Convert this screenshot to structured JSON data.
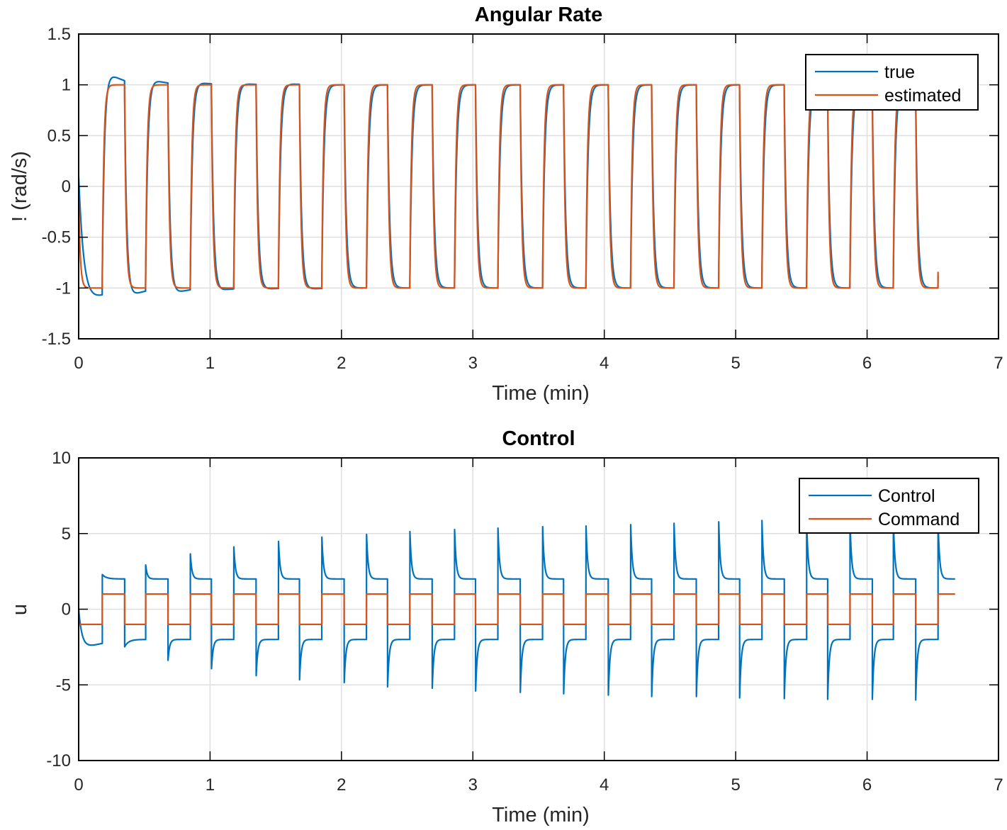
{
  "colors": {
    "blue": "#0072BD",
    "orange": "#D95319",
    "grid": "#DFDFDF",
    "axis": "#262626"
  },
  "chart_data": [
    {
      "type": "line",
      "title": "Angular Rate",
      "xlabel": "Time (min)",
      "ylabel": "!  (rad/s)",
      "xlim": [
        0,
        7
      ],
      "ylim": [
        -1.5,
        1.5
      ],
      "xticks": [
        0,
        1,
        2,
        3,
        4,
        5,
        6,
        7
      ],
      "xtick_labels": [
        "0",
        "1",
        "2",
        "3",
        "4",
        "5",
        "6",
        "7"
      ],
      "yticks": [
        -1.5,
        -1,
        -0.5,
        0,
        0.5,
        1,
        1.5
      ],
      "ytick_labels": [
        "-1.5",
        "-1",
        "-0.5",
        "0",
        "0.5",
        "1",
        "1.5"
      ],
      "grid": true,
      "legend": "top-right",
      "switch_times": [
        0.18,
        0.35,
        0.51,
        0.68,
        0.85,
        1.01,
        1.18,
        1.35,
        1.52,
        1.68,
        1.85,
        2.02,
        2.19,
        2.35,
        2.52,
        2.69,
        2.86,
        3.02,
        3.19,
        3.36,
        3.53,
        3.69,
        3.86,
        4.03,
        4.2,
        4.36,
        4.53,
        4.7,
        4.87,
        5.03,
        5.2,
        5.37,
        5.54,
        5.7,
        5.87,
        6.04,
        6.2,
        6.37,
        6.54
      ],
      "end_time": 6.54,
      "levels": {
        "high": 1,
        "low": -1
      },
      "series": [
        {
          "name": "true",
          "color": "#0072BD",
          "initial": 0.1,
          "peaks_after_switch": [
            1.09,
            -1.06,
            1.04,
            -1.04,
            1.02,
            -1.02,
            1.01,
            -1.01,
            1.01,
            -1.01,
            1,
            -1,
            1,
            -1,
            1,
            -1,
            1,
            -1,
            1,
            -1,
            1,
            -1,
            1,
            -1,
            1,
            -1,
            1,
            -1,
            1,
            -1,
            1,
            -1,
            1,
            -1,
            1,
            -1,
            1,
            -1,
            1
          ],
          "first_min": -1.1
        },
        {
          "name": "estimated",
          "color": "#D95319",
          "initial": 0
        }
      ]
    },
    {
      "type": "line",
      "title": "Control",
      "xlabel": "Time (min)",
      "ylabel": "u",
      "xlim": [
        0,
        7
      ],
      "ylim": [
        -10,
        10
      ],
      "xticks": [
        0,
        1,
        2,
        3,
        4,
        5,
        6,
        7
      ],
      "xtick_labels": [
        "0",
        "1",
        "2",
        "3",
        "4",
        "5",
        "6",
        "7"
      ],
      "yticks": [
        -10,
        -5,
        0,
        5,
        10
      ],
      "ytick_labels": [
        "-10",
        "-5",
        "0",
        "5",
        "10"
      ],
      "grid": true,
      "legend": "top-right",
      "end_time": 6.67,
      "series": [
        {
          "name": "Control",
          "color": "#0072BD",
          "initial": 0,
          "first_min": -2.4,
          "settled_levels": [
            2,
            -2
          ],
          "peaks_after_switch": [
            2.3,
            -2.5,
            3.0,
            -3.5,
            3.8,
            -4.1,
            4.3,
            -4.6,
            4.7,
            -4.9,
            5.0,
            -5.1,
            5.2,
            -5.4,
            5.4,
            -5.5,
            5.55,
            -5.7,
            5.65,
            -5.8,
            5.75,
            -5.9,
            5.8,
            -6.0,
            5.9,
            -6.1,
            6.0,
            -6.1,
            6.1,
            -6.2,
            6.2,
            -6.25,
            6.2,
            -6.3,
            6.2,
            -6.3,
            6.2,
            -6.35,
            6.2
          ]
        },
        {
          "name": "Command",
          "color": "#D95319",
          "initial": 0,
          "levels": [
            1,
            -1
          ]
        }
      ]
    }
  ]
}
